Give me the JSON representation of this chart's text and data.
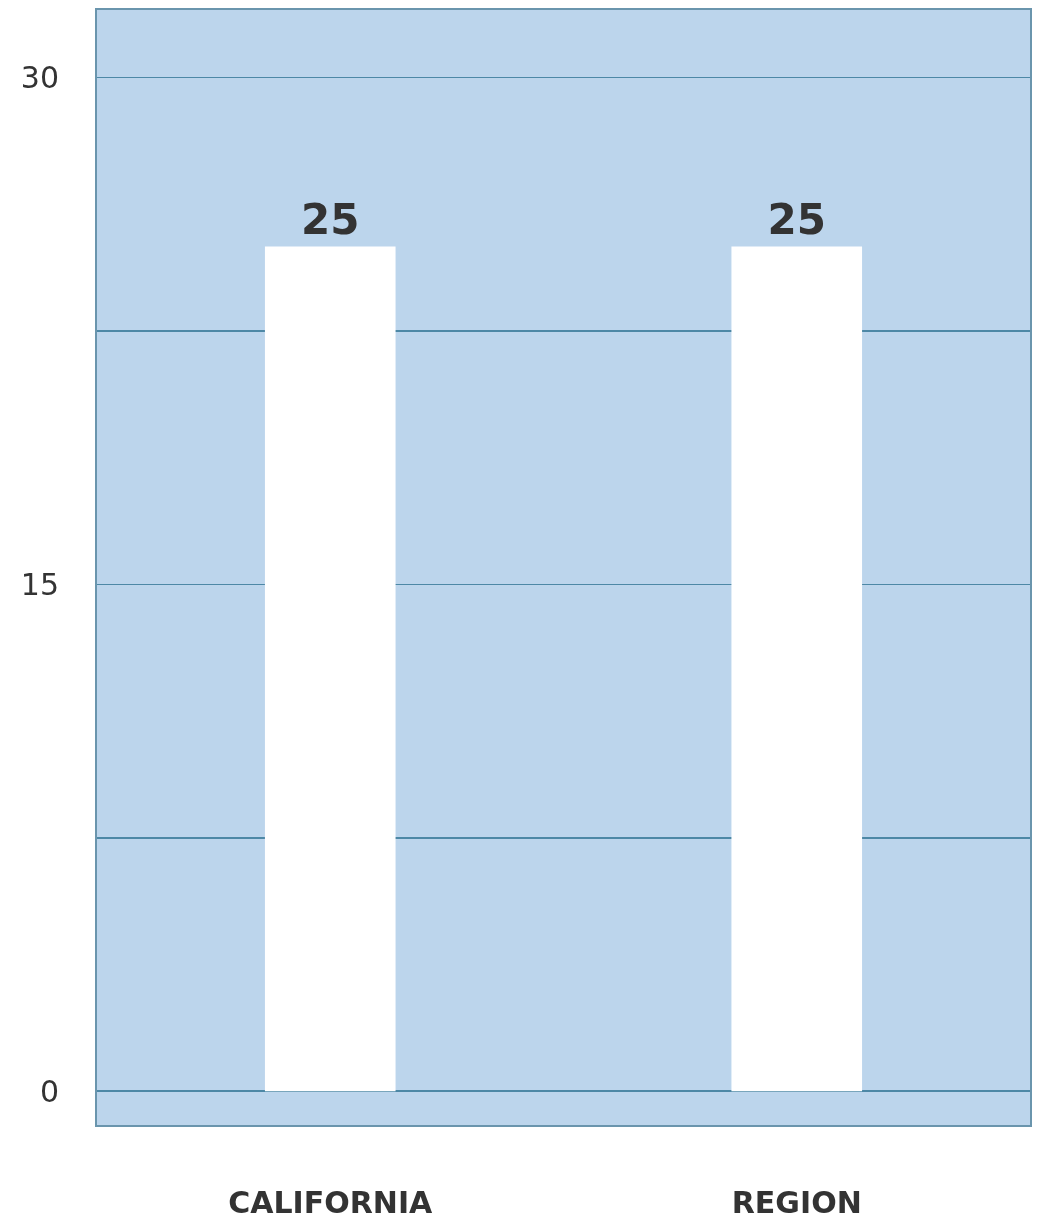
{
  "chart_data": {
    "type": "bar",
    "categories": [
      "CALIFORNIA",
      "REGION"
    ],
    "values": [
      25,
      25
    ],
    "color": "#ffffff",
    "data_labels": true,
    "ylim": [
      -1,
      32
    ],
    "yticks": [
      0,
      {
        "value": 7.5,
        "label": null
      },
      15,
      {
        "value": 22.5,
        "label": null
      },
      30
    ],
    "grid": "y"
  }
}
